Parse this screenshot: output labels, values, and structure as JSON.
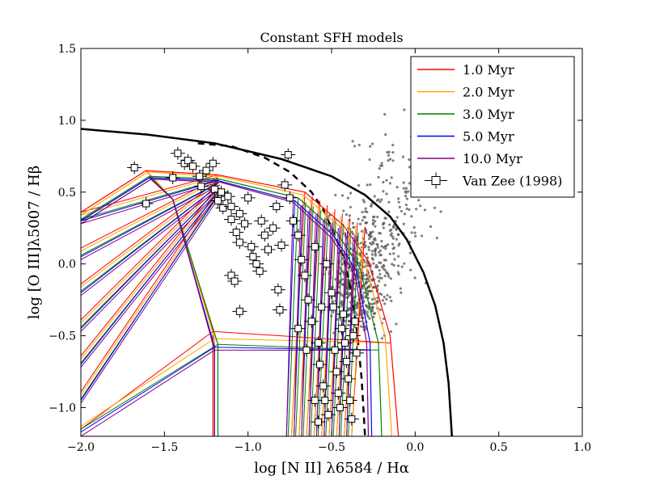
{
  "chart_data": {
    "type": "scatter",
    "title": "Constant SFH models",
    "xlabel": "log [N II] λ6584 / Hα",
    "ylabel": "log [O III]λ5007 / Hβ",
    "xlim": [
      -2.0,
      1.0
    ],
    "ylim": [
      -1.2,
      1.5
    ],
    "xticks": [
      -2.0,
      -1.5,
      -1.0,
      -0.5,
      0.0,
      0.5,
      1.0
    ],
    "xtick_labels": [
      "−2.0",
      "−1.5",
      "−1.0",
      "−0.5",
      "0.0",
      "0.5",
      "1.0"
    ],
    "yticks": [
      -1.0,
      -0.5,
      0.0,
      0.5,
      1.0,
      1.5
    ],
    "ytick_labels": [
      "−1.0",
      "−0.5",
      "0.0",
      "0.5",
      "1.0",
      "1.5"
    ],
    "grid": false,
    "legend_position": "top-right",
    "legend": [
      {
        "label": "1.0 Myr",
        "color": "#ff0000",
        "kind": "line"
      },
      {
        "label": "2.0 Myr",
        "color": "#ffa500",
        "kind": "line"
      },
      {
        "label": "3.0 Myr",
        "color": "#008000",
        "kind": "line"
      },
      {
        "label": "5.0 Myr",
        "color": "#0000ff",
        "kind": "line"
      },
      {
        "label": "10.0 Myr",
        "color": "#800080",
        "kind": "line"
      },
      {
        "label": "Van Zee (1998)",
        "color": "#000000",
        "kind": "errorbar-square"
      }
    ],
    "demarcation_curves": [
      {
        "style": "solid",
        "color": "#000000",
        "x": [
          -2.0,
          -1.6,
          -1.2,
          -0.8,
          -0.5,
          -0.3,
          -0.15,
          -0.05,
          0.05,
          0.12,
          0.17,
          0.2,
          0.22
        ],
        "y": [
          0.94,
          0.9,
          0.84,
          0.73,
          0.61,
          0.48,
          0.33,
          0.17,
          -0.06,
          -0.29,
          -0.55,
          -0.83,
          -1.2
        ]
      },
      {
        "style": "dashed",
        "color": "#000000",
        "x": [
          -1.3,
          -1.1,
          -0.9,
          -0.75,
          -0.62,
          -0.55,
          -0.48,
          -0.43,
          -0.38,
          -0.35,
          -0.32,
          -0.3
        ],
        "y": [
          0.84,
          0.82,
          0.74,
          0.64,
          0.5,
          0.38,
          0.2,
          0.05,
          -0.2,
          -0.45,
          -0.8,
          -1.2
        ]
      }
    ],
    "series": [
      {
        "name": "1.0 Myr",
        "color": "#ff0000",
        "grid_points": [
          [
            -2.0,
            0.36
          ],
          [
            -1.61,
            0.65
          ],
          [
            -1.18,
            0.62
          ],
          [
            -0.66,
            0.5
          ],
          [
            -0.43,
            0.27
          ],
          [
            -0.28,
            0.02
          ],
          [
            -0.15,
            -0.5
          ],
          [
            -0.1,
            -1.2
          ],
          [
            -2.0,
            -1.15
          ],
          [
            -1.21,
            -0.47
          ],
          [
            -0.84,
            -0.48
          ],
          [
            -0.5,
            -0.55
          ],
          [
            -0.3,
            -0.55
          ],
          [
            -0.9,
            -1.2
          ],
          [
            -0.75,
            -0.45
          ],
          [
            -0.55,
            -0.05
          ],
          [
            -0.45,
            0.2
          ]
        ]
      },
      {
        "name": "2.0 Myr",
        "color": "#ffa500",
        "grid_points": [
          [
            -2.0,
            0.34
          ],
          [
            -1.6,
            0.64
          ],
          [
            -1.17,
            0.61
          ],
          [
            -0.67,
            0.48
          ],
          [
            -0.44,
            0.25
          ],
          [
            -0.3,
            0.0
          ],
          [
            -0.18,
            -0.5
          ],
          [
            -0.14,
            -1.2
          ],
          [
            -2.0,
            -1.13
          ],
          [
            -1.2,
            -0.52
          ],
          [
            -0.84,
            -0.52
          ],
          [
            -0.55,
            -0.63
          ],
          [
            -0.33,
            -0.62
          ]
        ]
      },
      {
        "name": "3.0 Myr",
        "color": "#008000",
        "grid_points": [
          [
            -2.0,
            0.31
          ],
          [
            -1.59,
            0.61
          ],
          [
            -1.17,
            0.59
          ],
          [
            -0.7,
            0.46
          ],
          [
            -0.47,
            0.22
          ],
          [
            -0.33,
            -0.03
          ],
          [
            -0.22,
            -0.55
          ],
          [
            -0.2,
            -1.2
          ],
          [
            -2.0,
            -1.15
          ],
          [
            -1.18,
            -0.56
          ],
          [
            -0.8,
            -0.68
          ],
          [
            -0.5,
            -0.78
          ],
          [
            -0.22,
            -0.82
          ]
        ]
      },
      {
        "name": "5.0 Myr",
        "color": "#0000ff",
        "grid_points": [
          [
            -2.0,
            0.3
          ],
          [
            -1.59,
            0.6
          ],
          [
            -1.18,
            0.58
          ],
          [
            -0.72,
            0.44
          ],
          [
            -0.49,
            0.2
          ],
          [
            -0.35,
            -0.05
          ],
          [
            -0.27,
            -0.55
          ],
          [
            -0.26,
            -1.2
          ],
          [
            -2.0,
            -1.17
          ],
          [
            -1.2,
            -0.58
          ]
        ]
      },
      {
        "name": "10.0 Myr",
        "color": "#800080",
        "grid_points": [
          [
            -2.0,
            0.28
          ],
          [
            -1.58,
            0.59
          ],
          [
            -1.17,
            0.57
          ],
          [
            -0.73,
            0.43
          ],
          [
            -0.5,
            0.18
          ],
          [
            -0.36,
            -0.07
          ],
          [
            -0.29,
            -0.55
          ],
          [
            -0.28,
            -1.2
          ],
          [
            -2.0,
            -1.2
          ],
          [
            -1.2,
            -0.6
          ]
        ]
      }
    ],
    "van_zee_1998_points": [
      [
        -1.68,
        0.67
      ],
      [
        -1.61,
        0.42
      ],
      [
        -1.45,
        0.6
      ],
      [
        -1.42,
        0.77
      ],
      [
        -1.38,
        0.7
      ],
      [
        -1.36,
        0.72
      ],
      [
        -1.33,
        0.68
      ],
      [
        -1.29,
        0.61
      ],
      [
        -1.28,
        0.54
      ],
      [
        -1.25,
        0.65
      ],
      [
        -1.21,
        0.7
      ],
      [
        -1.2,
        0.52
      ],
      [
        -1.18,
        0.44
      ],
      [
        -1.16,
        0.5
      ],
      [
        -1.15,
        0.39
      ],
      [
        -1.12,
        0.47
      ],
      [
        -1.1,
        0.4
      ],
      [
        -1.1,
        0.31
      ],
      [
        -1.07,
        0.22
      ],
      [
        -1.05,
        0.15
      ],
      [
        -1.05,
        -0.33
      ],
      [
        -1.1,
        -0.08
      ],
      [
        -1.08,
        -0.12
      ],
      [
        -1.05,
        0.35
      ],
      [
        -1.02,
        0.28
      ],
      [
        -1.0,
        0.46
      ],
      [
        -0.98,
        0.12
      ],
      [
        -0.97,
        0.05
      ],
      [
        -0.95,
        0.0
      ],
      [
        -0.93,
        -0.05
      ],
      [
        -0.92,
        0.3
      ],
      [
        -0.9,
        0.2
      ],
      [
        -0.88,
        0.1
      ],
      [
        -0.85,
        0.25
      ],
      [
        -0.83,
        0.4
      ],
      [
        -0.82,
        -0.18
      ],
      [
        -0.81,
        -0.32
      ],
      [
        -0.8,
        0.13
      ],
      [
        -0.78,
        0.55
      ],
      [
        -0.76,
        0.76
      ],
      [
        -0.75,
        0.46
      ],
      [
        -0.73,
        0.3
      ],
      [
        -0.7,
        0.2
      ],
      [
        -0.68,
        0.03
      ],
      [
        -0.66,
        -0.08
      ],
      [
        -0.64,
        -0.25
      ],
      [
        -0.62,
        -0.4
      ],
      [
        -0.6,
        0.12
      ],
      [
        -0.58,
        -0.55
      ],
      [
        -0.57,
        -0.7
      ],
      [
        -0.55,
        -0.85
      ],
      [
        -0.54,
        -0.95
      ],
      [
        -0.53,
        0.0
      ],
      [
        -0.52,
        -1.05
      ],
      [
        -0.5,
        -0.2
      ],
      [
        -0.49,
        -0.3
      ],
      [
        -0.48,
        -0.6
      ],
      [
        -0.47,
        -0.75
      ],
      [
        -0.46,
        -0.9
      ],
      [
        -0.45,
        -1.0
      ],
      [
        -0.44,
        -0.45
      ],
      [
        -0.43,
        -0.35
      ],
      [
        -0.42,
        -0.55
      ],
      [
        -0.41,
        -0.68
      ],
      [
        -0.4,
        -0.8
      ],
      [
        -0.39,
        -0.95
      ],
      [
        -0.38,
        -1.08
      ],
      [
        -0.37,
        -0.5
      ],
      [
        -0.36,
        -0.4
      ],
      [
        -0.35,
        -0.62
      ],
      [
        -0.6,
        -0.95
      ],
      [
        -0.58,
        -1.1
      ],
      [
        -0.56,
        -0.3
      ],
      [
        -0.65,
        -0.6
      ],
      [
        -0.7,
        -0.45
      ]
    ]
  }
}
